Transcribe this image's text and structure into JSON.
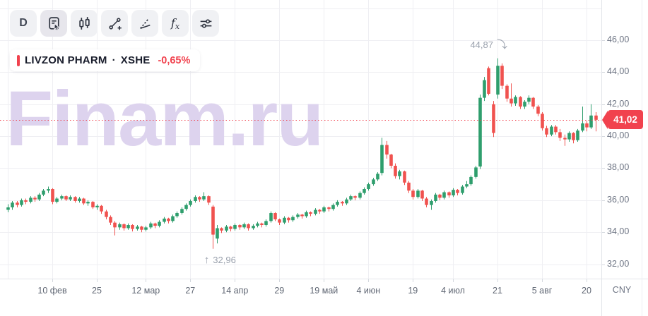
{
  "toolbar": {
    "timeframe_button": "D",
    "fx_button_f": "f",
    "fx_button_x": "x",
    "tool_icons": [
      "timeframe-d",
      "layout-template",
      "candlestick-style",
      "trend-line-tool",
      "angle-tool",
      "indicators-fx",
      "settings-sliders"
    ]
  },
  "legend": {
    "ticker": "LIVZON PHARM",
    "separator": "·",
    "exchange": "XSHE",
    "change": "-0,65%"
  },
  "watermark": "Finam.ru",
  "price_scale": {
    "last_price_label": "41,02",
    "currency": "CNY"
  },
  "chart_data": {
    "type": "candlestick",
    "title": "LIVZON PHARM · XSHE — daily candlesticks",
    "currency": "CNY",
    "grid": true,
    "legend_position": "top-left",
    "last_price": 41.02,
    "change_percent": -0.65,
    "price_range_visible": [
      31.1,
      48.51
    ],
    "y_axis": {
      "ticks": [
        {
          "v": 48,
          "label": ""
        },
        {
          "v": 46,
          "label": "46,00"
        },
        {
          "v": 44,
          "label": "44,00"
        },
        {
          "v": 42,
          "label": "42,00"
        },
        {
          "v": 40,
          "label": "40,00"
        },
        {
          "v": 38,
          "label": "38,00"
        },
        {
          "v": 36,
          "label": "36,00"
        },
        {
          "v": 34,
          "label": "34,00"
        },
        {
          "v": 32,
          "label": "32,00"
        }
      ]
    },
    "x_axis": {
      "ticks": [
        {
          "i": 0,
          "label": ""
        },
        {
          "i": 10,
          "label": "10 фев"
        },
        {
          "i": 20,
          "label": "25"
        },
        {
          "i": 31,
          "label": "12 мар"
        },
        {
          "i": 41,
          "label": "27"
        },
        {
          "i": 51,
          "label": "14 апр"
        },
        {
          "i": 61,
          "label": "29"
        },
        {
          "i": 71,
          "label": "19 май"
        },
        {
          "i": 81,
          "label": "4 июн"
        },
        {
          "i": 91,
          "label": "19"
        },
        {
          "i": 100,
          "label": "4 июл"
        },
        {
          "i": 110,
          "label": "21"
        },
        {
          "i": 120,
          "label": "5 авг"
        },
        {
          "i": 130,
          "label": "20"
        }
      ]
    },
    "annotations": {
      "high": {
        "index": 110,
        "price": 44.87,
        "label": "44,87",
        "arrow": "⤵"
      },
      "low": {
        "index": 46,
        "price": 32.96,
        "label": "32,96",
        "arrow": "↑"
      }
    },
    "colors": {
      "up": "#2f9e6d",
      "down": "#f0524f",
      "accent": "#f1424e",
      "grid": "#efeff3",
      "watermark": "#ddd3ee",
      "axis_text": "#6e7584"
    },
    "candles": [
      [
        35.4,
        35.75,
        35.25,
        35.55
      ],
      [
        35.55,
        35.95,
        35.4,
        35.85
      ],
      [
        35.85,
        35.95,
        35.55,
        35.7
      ],
      [
        35.7,
        36.1,
        35.6,
        36.0
      ],
      [
        36.0,
        36.1,
        35.75,
        35.9
      ],
      [
        35.9,
        36.25,
        35.8,
        36.15
      ],
      [
        36.15,
        36.25,
        35.9,
        36.05
      ],
      [
        36.05,
        36.45,
        35.95,
        36.35
      ],
      [
        36.35,
        36.7,
        36.25,
        36.6
      ],
      [
        36.6,
        36.85,
        36.45,
        36.7
      ],
      [
        36.7,
        36.75,
        35.75,
        35.9
      ],
      [
        35.9,
        36.2,
        35.8,
        36.1
      ],
      [
        36.1,
        36.35,
        36.0,
        36.25
      ],
      [
        36.25,
        36.3,
        35.95,
        36.05
      ],
      [
        36.05,
        36.3,
        35.95,
        36.2
      ],
      [
        36.2,
        36.25,
        35.85,
        35.95
      ],
      [
        35.95,
        36.2,
        35.85,
        36.1
      ],
      [
        36.1,
        36.15,
        35.7,
        35.8
      ],
      [
        35.8,
        36.0,
        35.65,
        35.9
      ],
      [
        35.9,
        35.95,
        35.45,
        35.55
      ],
      [
        35.55,
        35.75,
        35.4,
        35.65
      ],
      [
        35.65,
        35.7,
        35.15,
        35.3
      ],
      [
        35.3,
        35.4,
        34.8,
        34.95
      ],
      [
        34.95,
        35.05,
        34.45,
        34.6
      ],
      [
        34.6,
        34.7,
        33.8,
        34.3
      ],
      [
        34.3,
        34.6,
        34.15,
        34.5
      ],
      [
        34.5,
        34.55,
        34.1,
        34.25
      ],
      [
        34.25,
        34.55,
        34.15,
        34.45
      ],
      [
        34.45,
        34.5,
        34.05,
        34.2
      ],
      [
        34.2,
        34.45,
        34.1,
        34.35
      ],
      [
        34.35,
        34.4,
        34.0,
        34.15
      ],
      [
        34.15,
        34.4,
        34.05,
        34.3
      ],
      [
        34.3,
        34.65,
        34.2,
        34.55
      ],
      [
        34.55,
        34.6,
        34.25,
        34.4
      ],
      [
        34.4,
        34.75,
        34.3,
        34.65
      ],
      [
        34.65,
        34.95,
        34.55,
        34.85
      ],
      [
        34.85,
        34.9,
        34.55,
        34.7
      ],
      [
        34.7,
        35.1,
        34.6,
        35.0
      ],
      [
        35.0,
        35.3,
        34.9,
        35.2
      ],
      [
        35.2,
        35.55,
        35.1,
        35.45
      ],
      [
        35.45,
        35.8,
        35.35,
        35.7
      ],
      [
        35.7,
        36.05,
        35.6,
        35.95
      ],
      [
        35.95,
        36.3,
        35.85,
        36.2
      ],
      [
        36.2,
        36.25,
        35.9,
        36.05
      ],
      [
        36.05,
        36.5,
        35.95,
        36.25
      ],
      [
        36.25,
        36.3,
        35.7,
        35.85
      ],
      [
        35.6,
        35.7,
        32.96,
        33.85
      ],
      [
        33.6,
        34.45,
        33.3,
        34.25
      ],
      [
        34.25,
        34.3,
        33.95,
        34.1
      ],
      [
        34.1,
        34.45,
        34.0,
        34.35
      ],
      [
        34.35,
        34.4,
        34.05,
        34.2
      ],
      [
        34.2,
        34.55,
        34.1,
        34.45
      ],
      [
        34.45,
        34.5,
        34.15,
        34.3
      ],
      [
        34.3,
        34.6,
        34.2,
        34.5
      ],
      [
        34.5,
        34.55,
        34.1,
        34.25
      ],
      [
        34.25,
        34.5,
        34.15,
        34.4
      ],
      [
        34.4,
        34.65,
        34.3,
        34.55
      ],
      [
        34.55,
        34.6,
        34.3,
        34.45
      ],
      [
        34.45,
        34.8,
        34.35,
        34.7
      ],
      [
        34.7,
        35.3,
        34.6,
        35.2
      ],
      [
        35.2,
        35.25,
        34.7,
        34.8
      ],
      [
        34.8,
        34.85,
        34.45,
        34.6
      ],
      [
        34.6,
        35.0,
        34.5,
        34.9
      ],
      [
        34.9,
        34.95,
        34.6,
        34.75
      ],
      [
        34.75,
        35.05,
        34.65,
        34.95
      ],
      [
        34.95,
        35.2,
        34.85,
        35.1
      ],
      [
        35.1,
        35.15,
        34.85,
        35.0
      ],
      [
        35.0,
        35.35,
        34.9,
        35.25
      ],
      [
        35.25,
        35.3,
        35.0,
        35.15
      ],
      [
        35.15,
        35.5,
        35.05,
        35.4
      ],
      [
        35.4,
        35.45,
        35.15,
        35.3
      ],
      [
        35.3,
        35.65,
        35.2,
        35.55
      ],
      [
        35.55,
        35.6,
        35.3,
        35.45
      ],
      [
        35.45,
        35.8,
        35.35,
        35.7
      ],
      [
        35.7,
        36.0,
        35.6,
        35.9
      ],
      [
        35.9,
        35.95,
        35.65,
        35.8
      ],
      [
        35.8,
        36.15,
        35.7,
        36.05
      ],
      [
        36.05,
        36.35,
        35.95,
        36.25
      ],
      [
        36.25,
        36.3,
        36.0,
        36.15
      ],
      [
        36.15,
        36.55,
        36.05,
        36.45
      ],
      [
        36.45,
        36.8,
        36.35,
        36.7
      ],
      [
        36.7,
        37.1,
        36.6,
        37.0
      ],
      [
        37.0,
        37.4,
        36.9,
        37.3
      ],
      [
        37.3,
        37.75,
        37.2,
        37.65
      ],
      [
        37.7,
        39.9,
        37.55,
        39.45
      ],
      [
        39.45,
        39.7,
        38.6,
        38.85
      ],
      [
        38.85,
        38.9,
        38.0,
        38.15
      ],
      [
        38.15,
        38.3,
        37.35,
        37.5
      ],
      [
        37.5,
        37.9,
        37.3,
        37.8
      ],
      [
        37.8,
        37.85,
        36.95,
        37.1
      ],
      [
        37.1,
        37.2,
        36.45,
        36.6
      ],
      [
        36.6,
        36.7,
        36.05,
        36.2
      ],
      [
        36.2,
        36.7,
        36.1,
        36.6
      ],
      [
        36.6,
        36.65,
        35.95,
        36.1
      ],
      [
        36.1,
        36.2,
        35.55,
        35.7
      ],
      [
        35.7,
        36.05,
        35.4,
        35.95
      ],
      [
        35.95,
        36.45,
        35.85,
        36.35
      ],
      [
        36.35,
        36.4,
        36.0,
        36.15
      ],
      [
        36.15,
        36.6,
        36.05,
        36.5
      ],
      [
        36.5,
        36.55,
        36.15,
        36.3
      ],
      [
        36.3,
        36.75,
        36.2,
        36.65
      ],
      [
        36.65,
        36.7,
        36.3,
        36.45
      ],
      [
        36.45,
        36.95,
        36.35,
        36.85
      ],
      [
        36.85,
        37.2,
        36.75,
        37.0
      ],
      [
        37.0,
        37.55,
        36.9,
        37.45
      ],
      [
        37.45,
        38.15,
        37.35,
        38.05
      ],
      [
        38.1,
        42.6,
        37.95,
        42.4
      ],
      [
        42.4,
        43.7,
        42.2,
        43.5
      ],
      [
        44.25,
        44.35,
        42.55,
        42.65
      ],
      [
        42.0,
        42.2,
        39.95,
        40.2
      ],
      [
        42.6,
        44.87,
        42.35,
        44.4
      ],
      [
        44.4,
        44.55,
        42.95,
        43.15
      ],
      [
        43.15,
        43.25,
        42.15,
        42.35
      ],
      [
        42.35,
        43.3,
        41.85,
        42.05
      ],
      [
        42.05,
        42.55,
        41.9,
        42.45
      ],
      [
        42.45,
        42.5,
        41.7,
        41.85
      ],
      [
        41.85,
        42.25,
        41.7,
        42.15
      ],
      [
        42.15,
        42.55,
        42.0,
        42.4
      ],
      [
        42.4,
        42.45,
        41.7,
        41.85
      ],
      [
        41.85,
        41.95,
        41.25,
        41.4
      ],
      [
        41.4,
        41.5,
        40.35,
        40.5
      ],
      [
        40.5,
        40.65,
        39.95,
        40.1
      ],
      [
        40.1,
        40.7,
        40.0,
        40.6
      ],
      [
        40.6,
        40.7,
        40.1,
        40.25
      ],
      [
        40.25,
        40.45,
        39.7,
        39.9
      ],
      [
        39.9,
        40.1,
        39.4,
        39.8
      ],
      [
        39.8,
        40.3,
        39.65,
        40.2
      ],
      [
        40.2,
        40.25,
        39.55,
        39.75
      ],
      [
        39.75,
        40.45,
        39.65,
        40.35
      ],
      [
        40.35,
        41.85,
        40.25,
        40.8
      ],
      [
        40.8,
        40.95,
        40.3,
        40.55
      ],
      [
        40.55,
        42.0,
        40.45,
        41.29
      ],
      [
        41.29,
        41.5,
        40.3,
        41.02
      ]
    ]
  }
}
